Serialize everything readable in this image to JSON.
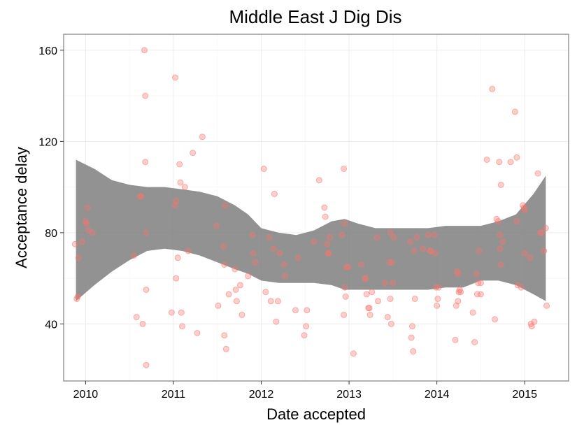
{
  "chart_data": {
    "type": "scatter",
    "title": "Middle East J Dig Dis",
    "xlabel": "Date accepted",
    "ylabel": "Acceptance delay",
    "xlim": [
      2009.75,
      2015.5
    ],
    "ylim": [
      15,
      167
    ],
    "x_ticks": [
      2010,
      2011,
      2012,
      2013,
      2014,
      2015
    ],
    "x_tick_labels": [
      "2010",
      "2011",
      "2012",
      "2013",
      "2014",
      "2015"
    ],
    "y_ticks": [
      40,
      80,
      120,
      160
    ],
    "y_tick_labels": [
      "40",
      "80",
      "120",
      "160"
    ],
    "grid": true,
    "point_color": "#f8766d",
    "band_color": "#7f7f7f",
    "points": [
      {
        "x": 2009.88,
        "y": 75
      },
      {
        "x": 2009.9,
        "y": 51
      },
      {
        "x": 2009.91,
        "y": 52
      },
      {
        "x": 2009.92,
        "y": 69
      },
      {
        "x": 2009.96,
        "y": 76
      },
      {
        "x": 2010.0,
        "y": 85
      },
      {
        "x": 2010.01,
        "y": 84
      },
      {
        "x": 2010.02,
        "y": 91
      },
      {
        "x": 2010.03,
        "y": 81
      },
      {
        "x": 2010.08,
        "y": 80
      },
      {
        "x": 2010.55,
        "y": 70
      },
      {
        "x": 2010.58,
        "y": 43
      },
      {
        "x": 2010.62,
        "y": 96
      },
      {
        "x": 2010.63,
        "y": 96
      },
      {
        "x": 2010.65,
        "y": 40
      },
      {
        "x": 2010.67,
        "y": 160
      },
      {
        "x": 2010.68,
        "y": 140
      },
      {
        "x": 2010.68,
        "y": 111
      },
      {
        "x": 2010.69,
        "y": 80
      },
      {
        "x": 2010.69,
        "y": 55
      },
      {
        "x": 2010.69,
        "y": 22
      },
      {
        "x": 2010.98,
        "y": 45
      },
      {
        "x": 2011.02,
        "y": 148
      },
      {
        "x": 2011.02,
        "y": 92
      },
      {
        "x": 2011.03,
        "y": 94
      },
      {
        "x": 2011.03,
        "y": 60
      },
      {
        "x": 2011.05,
        "y": 69
      },
      {
        "x": 2011.07,
        "y": 110
      },
      {
        "x": 2011.08,
        "y": 102
      },
      {
        "x": 2011.09,
        "y": 45
      },
      {
        "x": 2011.1,
        "y": 39
      },
      {
        "x": 2011.13,
        "y": 100
      },
      {
        "x": 2011.17,
        "y": 72
      },
      {
        "x": 2011.22,
        "y": 115
      },
      {
        "x": 2011.27,
        "y": 36
      },
      {
        "x": 2011.33,
        "y": 122
      },
      {
        "x": 2011.49,
        "y": 83
      },
      {
        "x": 2011.51,
        "y": 48
      },
      {
        "x": 2011.57,
        "y": 74
      },
      {
        "x": 2011.58,
        "y": 66
      },
      {
        "x": 2011.58,
        "y": 35
      },
      {
        "x": 2011.59,
        "y": 92
      },
      {
        "x": 2011.6,
        "y": 29
      },
      {
        "x": 2011.63,
        "y": 53
      },
      {
        "x": 2011.7,
        "y": 64
      },
      {
        "x": 2011.71,
        "y": 55
      },
      {
        "x": 2011.72,
        "y": 50
      },
      {
        "x": 2011.76,
        "y": 57
      },
      {
        "x": 2011.78,
        "y": 44
      },
      {
        "x": 2011.85,
        "y": 61
      },
      {
        "x": 2011.9,
        "y": 79
      },
      {
        "x": 2011.91,
        "y": 71
      },
      {
        "x": 2011.93,
        "y": 67
      },
      {
        "x": 2012.03,
        "y": 108
      },
      {
        "x": 2012.05,
        "y": 54
      },
      {
        "x": 2012.09,
        "y": 78
      },
      {
        "x": 2012.11,
        "y": 50
      },
      {
        "x": 2012.14,
        "y": 73
      },
      {
        "x": 2012.15,
        "y": 97
      },
      {
        "x": 2012.17,
        "y": 41
      },
      {
        "x": 2012.19,
        "y": 50
      },
      {
        "x": 2012.21,
        "y": 71
      },
      {
        "x": 2012.26,
        "y": 66
      },
      {
        "x": 2012.27,
        "y": 61
      },
      {
        "x": 2012.39,
        "y": 46
      },
      {
        "x": 2012.42,
        "y": 69
      },
      {
        "x": 2012.49,
        "y": 35
      },
      {
        "x": 2012.51,
        "y": 39
      },
      {
        "x": 2012.52,
        "y": 46
      },
      {
        "x": 2012.6,
        "y": 76
      },
      {
        "x": 2012.66,
        "y": 103
      },
      {
        "x": 2012.72,
        "y": 91
      },
      {
        "x": 2012.73,
        "y": 87
      },
      {
        "x": 2012.75,
        "y": 75
      },
      {
        "x": 2012.76,
        "y": 71
      },
      {
        "x": 2012.77,
        "y": 71
      },
      {
        "x": 2012.78,
        "y": 78
      },
      {
        "x": 2012.92,
        "y": 79
      },
      {
        "x": 2012.94,
        "y": 44
      },
      {
        "x": 2012.94,
        "y": 108
      },
      {
        "x": 2012.95,
        "y": 84
      },
      {
        "x": 2012.95,
        "y": 56
      },
      {
        "x": 2012.96,
        "y": 52
      },
      {
        "x": 2012.97,
        "y": 65
      },
      {
        "x": 2012.99,
        "y": 65
      },
      {
        "x": 2013.05,
        "y": 27
      },
      {
        "x": 2013.14,
        "y": 66
      },
      {
        "x": 2013.18,
        "y": 60
      },
      {
        "x": 2013.19,
        "y": 60
      },
      {
        "x": 2013.2,
        "y": 53
      },
      {
        "x": 2013.22,
        "y": 47
      },
      {
        "x": 2013.23,
        "y": 47
      },
      {
        "x": 2013.24,
        "y": 44
      },
      {
        "x": 2013.26,
        "y": 54
      },
      {
        "x": 2013.32,
        "y": 78
      },
      {
        "x": 2013.33,
        "y": 50
      },
      {
        "x": 2013.41,
        "y": 58
      },
      {
        "x": 2013.44,
        "y": 43
      },
      {
        "x": 2013.46,
        "y": 67
      },
      {
        "x": 2013.47,
        "y": 51
      },
      {
        "x": 2013.47,
        "y": 80
      },
      {
        "x": 2013.48,
        "y": 40
      },
      {
        "x": 2013.49,
        "y": 67
      },
      {
        "x": 2013.5,
        "y": 58
      },
      {
        "x": 2013.51,
        "y": 78
      },
      {
        "x": 2013.7,
        "y": 76
      },
      {
        "x": 2013.71,
        "y": 34
      },
      {
        "x": 2013.72,
        "y": 39
      },
      {
        "x": 2013.73,
        "y": 28
      },
      {
        "x": 2013.74,
        "y": 72
      },
      {
        "x": 2013.75,
        "y": 51
      },
      {
        "x": 2013.77,
        "y": 78
      },
      {
        "x": 2013.84,
        "y": 73
      },
      {
        "x": 2013.9,
        "y": 79
      },
      {
        "x": 2013.92,
        "y": 72
      },
      {
        "x": 2013.93,
        "y": 72
      },
      {
        "x": 2013.97,
        "y": 79
      },
      {
        "x": 2013.98,
        "y": 71
      },
      {
        "x": 2013.99,
        "y": 56
      },
      {
        "x": 2014.0,
        "y": 48
      },
      {
        "x": 2014.01,
        "y": 51
      },
      {
        "x": 2014.02,
        "y": 56
      },
      {
        "x": 2014.21,
        "y": 33
      },
      {
        "x": 2014.22,
        "y": 48
      },
      {
        "x": 2014.23,
        "y": 63
      },
      {
        "x": 2014.24,
        "y": 62
      },
      {
        "x": 2014.24,
        "y": 50
      },
      {
        "x": 2014.25,
        "y": 54
      },
      {
        "x": 2014.26,
        "y": 55
      },
      {
        "x": 2014.27,
        "y": 54
      },
      {
        "x": 2014.41,
        "y": 45
      },
      {
        "x": 2014.43,
        "y": 32
      },
      {
        "x": 2014.45,
        "y": 62
      },
      {
        "x": 2014.46,
        "y": 53
      },
      {
        "x": 2014.47,
        "y": 58
      },
      {
        "x": 2014.48,
        "y": 72
      },
      {
        "x": 2014.5,
        "y": 58
      },
      {
        "x": 2014.5,
        "y": 53
      },
      {
        "x": 2014.57,
        "y": 112
      },
      {
        "x": 2014.63,
        "y": 143
      },
      {
        "x": 2014.66,
        "y": 42
      },
      {
        "x": 2014.68,
        "y": 86
      },
      {
        "x": 2014.7,
        "y": 85
      },
      {
        "x": 2014.71,
        "y": 111
      },
      {
        "x": 2014.72,
        "y": 79
      },
      {
        "x": 2014.72,
        "y": 73
      },
      {
        "x": 2014.73,
        "y": 66
      },
      {
        "x": 2014.73,
        "y": 101
      },
      {
        "x": 2014.75,
        "y": 76
      },
      {
        "x": 2014.84,
        "y": 111
      },
      {
        "x": 2014.89,
        "y": 133
      },
      {
        "x": 2014.91,
        "y": 113
      },
      {
        "x": 2014.91,
        "y": 85
      },
      {
        "x": 2014.92,
        "y": 57
      },
      {
        "x": 2014.96,
        "y": 56
      },
      {
        "x": 2014.98,
        "y": 92
      },
      {
        "x": 2014.99,
        "y": 91
      },
      {
        "x": 2015.0,
        "y": 90
      },
      {
        "x": 2015.0,
        "y": 71
      },
      {
        "x": 2015.06,
        "y": 69
      },
      {
        "x": 2015.07,
        "y": 40
      },
      {
        "x": 2015.08,
        "y": 39
      },
      {
        "x": 2015.11,
        "y": 41
      },
      {
        "x": 2015.15,
        "y": 106
      },
      {
        "x": 2015.18,
        "y": 80
      },
      {
        "x": 2015.19,
        "y": 80
      },
      {
        "x": 2015.22,
        "y": 72
      },
      {
        "x": 2015.24,
        "y": 82
      },
      {
        "x": 2015.25,
        "y": 48
      }
    ],
    "smooth_band": {
      "x": [
        2009.89,
        2010.1,
        2010.3,
        2010.5,
        2010.7,
        2010.9,
        2011.1,
        2011.3,
        2011.5,
        2011.7,
        2011.85,
        2012.0,
        2012.2,
        2012.4,
        2012.6,
        2012.8,
        2012.95,
        2013.1,
        2013.3,
        2013.5,
        2013.7,
        2013.9,
        2014.1,
        2014.3,
        2014.5,
        2014.7,
        2014.9,
        2015.1,
        2015.24
      ],
      "upper": [
        112,
        108,
        103,
        101,
        100,
        100,
        99,
        98,
        96,
        92,
        88,
        82,
        80,
        79,
        81,
        85,
        86,
        84,
        82,
        82,
        82,
        82,
        83,
        83,
        83,
        85,
        88,
        97,
        105
      ],
      "lower": [
        50,
        57,
        63,
        68,
        72,
        73,
        72,
        70,
        67,
        64,
        62,
        59,
        58,
        58,
        58,
        57,
        55,
        55,
        55,
        55,
        55,
        55,
        56,
        56,
        59,
        59,
        57,
        53,
        50
      ]
    }
  }
}
